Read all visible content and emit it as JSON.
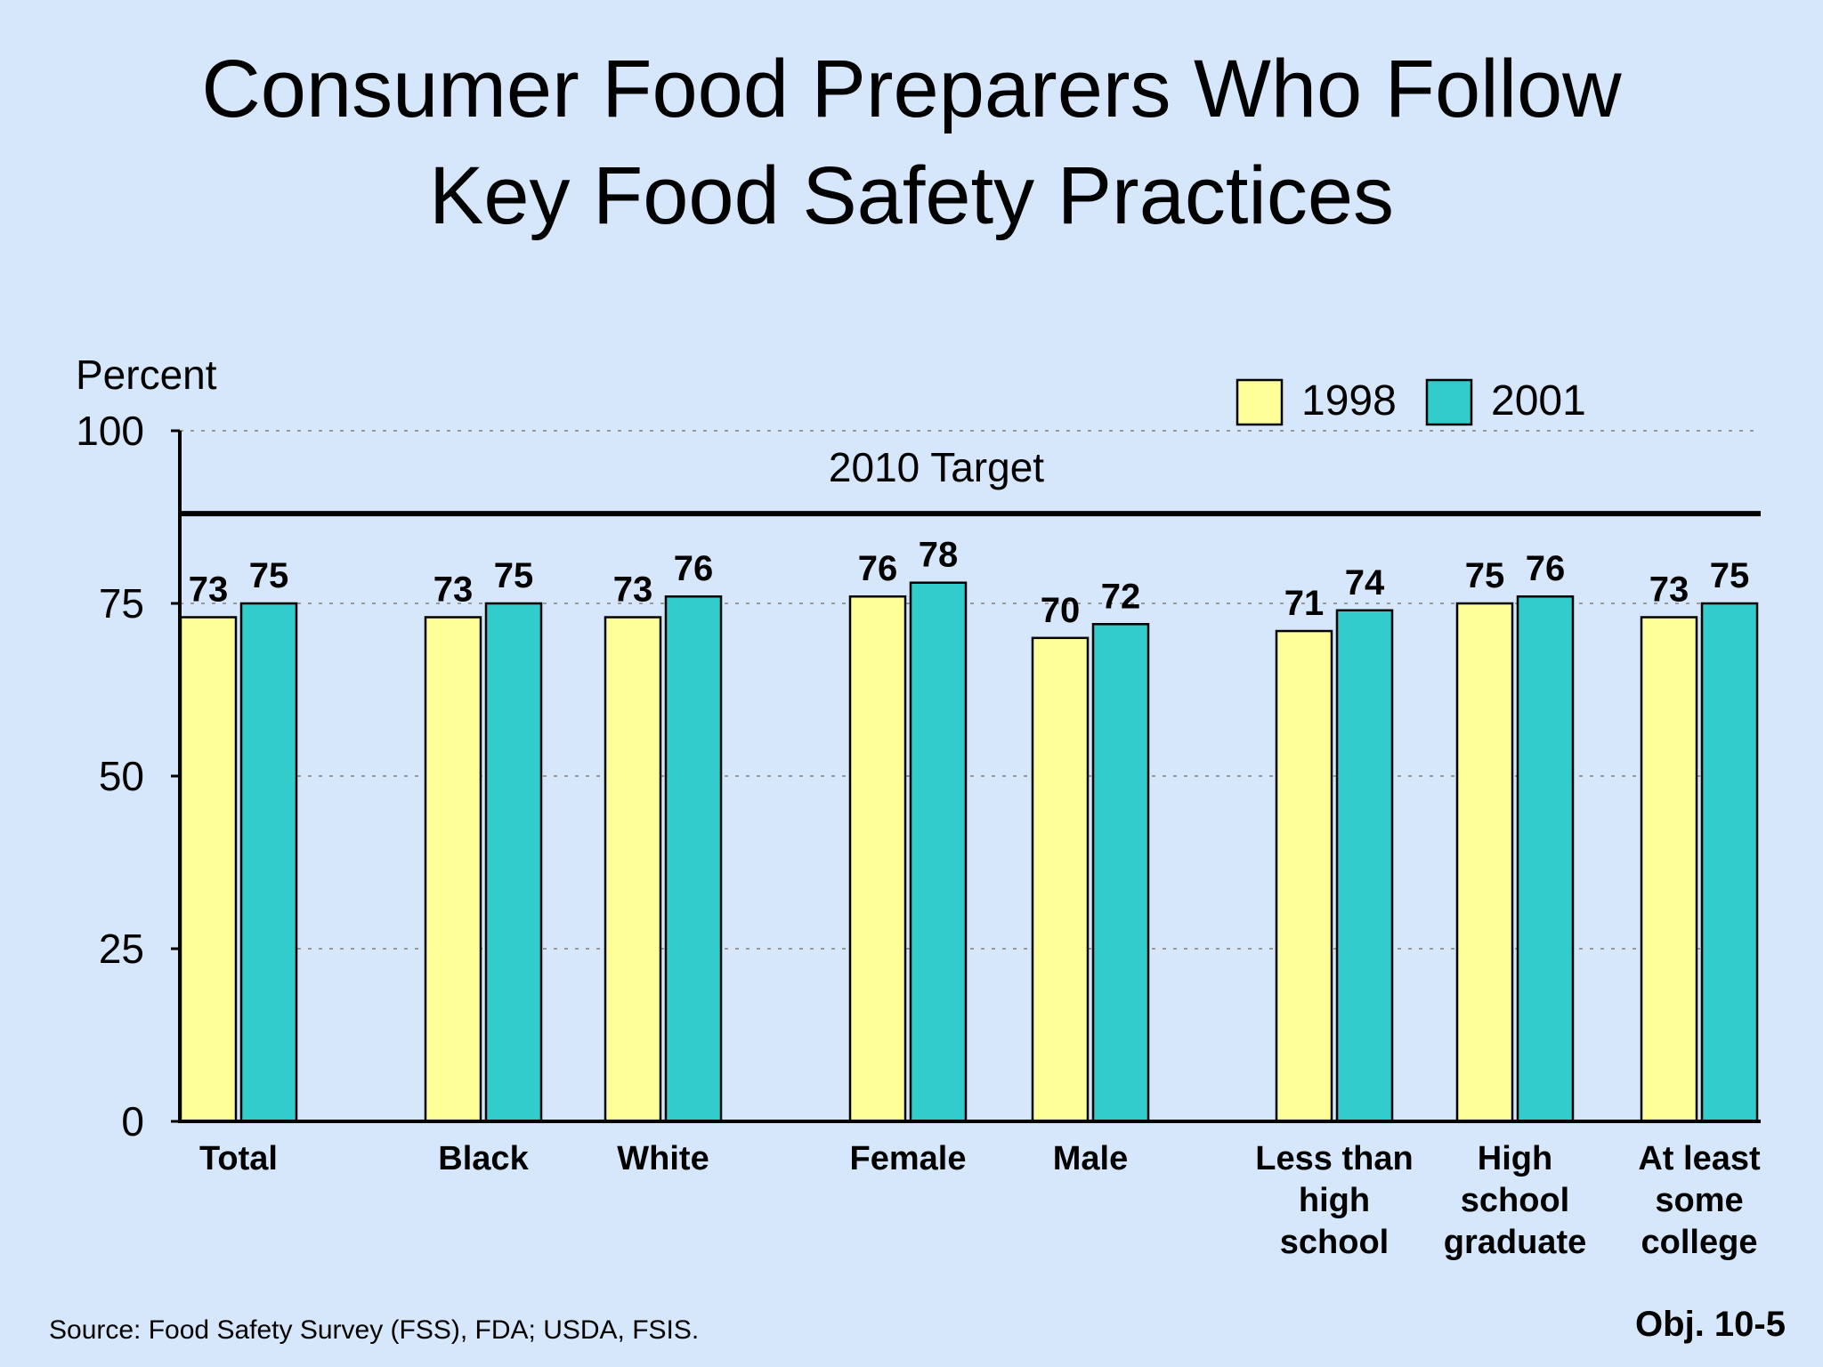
{
  "title_lines": [
    "Consumer Food Preparers Who Follow",
    "Key Food Safety Practices"
  ],
  "source": "Source: Food Safety Survey (FSS), FDA; USDA, FSIS.",
  "objective": "Obj. 10-5",
  "colors": {
    "s1998": "#ffff99",
    "s2001": "#33cccc",
    "background": "#d6e7fb"
  },
  "chart_data": {
    "type": "bar",
    "title": "Consumer Food Preparers Who Follow Key Food Safety Practices",
    "ylabel": "Percent",
    "ylim": [
      0,
      100
    ],
    "yticks": [
      0,
      25,
      50,
      75,
      100
    ],
    "grid": true,
    "legend_position": "top-right",
    "categories": [
      [
        "Total"
      ],
      [
        "Black"
      ],
      [
        "White"
      ],
      [
        "Female"
      ],
      [
        "Male"
      ],
      [
        "Less than",
        "high",
        "school"
      ],
      [
        "High",
        "school",
        "graduate"
      ],
      [
        "At least",
        "some",
        "college"
      ]
    ],
    "series": [
      {
        "name": "1998",
        "values": [
          73,
          73,
          73,
          76,
          70,
          71,
          75,
          73
        ]
      },
      {
        "name": "2001",
        "values": [
          75,
          75,
          76,
          78,
          72,
          74,
          76,
          75
        ]
      }
    ],
    "target": {
      "label": "2010 Target",
      "value": 88
    }
  }
}
